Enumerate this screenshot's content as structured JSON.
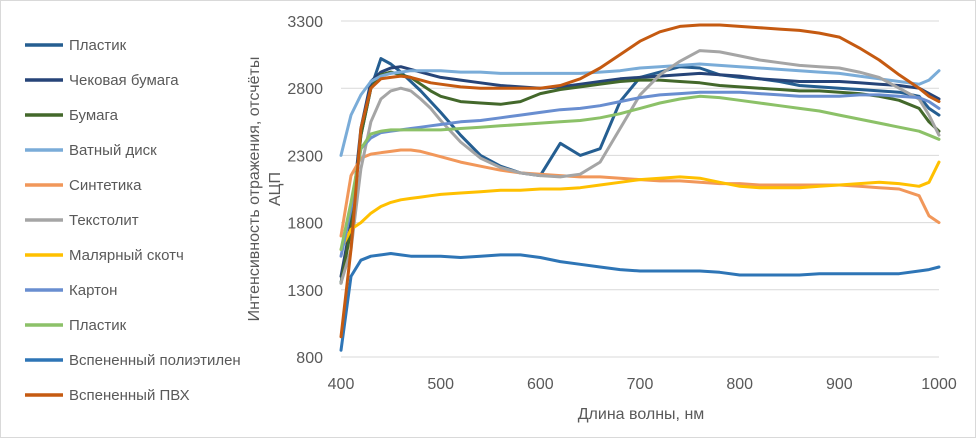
{
  "chart_data": {
    "type": "line",
    "title": "",
    "xlabel": "Длина волны, нм",
    "ylabel": "Интенсивность отражения, отсчёты АЦП",
    "xlim": [
      400,
      1000
    ],
    "ylim": [
      800,
      3300
    ],
    "xticks": [
      "400",
      "500",
      "600",
      "700",
      "800",
      "900",
      "1000"
    ],
    "yticks": [
      "800",
      "1300",
      "1800",
      "2300",
      "2800",
      "3300"
    ],
    "grid": "horizontal",
    "legend_position": "left",
    "x": [
      400,
      410,
      420,
      430,
      440,
      450,
      460,
      470,
      480,
      490,
      500,
      520,
      540,
      560,
      580,
      600,
      620,
      640,
      660,
      680,
      700,
      720,
      740,
      760,
      780,
      800,
      820,
      840,
      860,
      880,
      900,
      920,
      940,
      960,
      980,
      990,
      1000
    ],
    "series": [
      {
        "name": "Пластик",
        "color": "#255e91",
        "values": [
          1350,
          1800,
          2450,
          2800,
          3020,
          2980,
          2920,
          2850,
          2780,
          2700,
          2620,
          2450,
          2300,
          2220,
          2170,
          2150,
          2390,
          2300,
          2350,
          2700,
          2880,
          2920,
          2960,
          2950,
          2900,
          2880,
          2870,
          2850,
          2820,
          2810,
          2800,
          2790,
          2780,
          2770,
          2740,
          2650,
          2600
        ]
      },
      {
        "name": "Чековая бумага",
        "color": "#264478",
        "values": [
          1400,
          1800,
          2500,
          2850,
          2920,
          2950,
          2960,
          2940,
          2920,
          2900,
          2880,
          2860,
          2840,
          2820,
          2810,
          2800,
          2810,
          2830,
          2850,
          2870,
          2880,
          2890,
          2900,
          2910,
          2900,
          2890,
          2870,
          2860,
          2850,
          2850,
          2850,
          2840,
          2830,
          2820,
          2800,
          2760,
          2720
        ]
      },
      {
        "name": "Бумага",
        "color": "#43682b",
        "values": [
          1350,
          1750,
          2450,
          2800,
          2900,
          2920,
          2900,
          2880,
          2830,
          2780,
          2740,
          2700,
          2690,
          2680,
          2700,
          2760,
          2790,
          2810,
          2830,
          2850,
          2860,
          2860,
          2850,
          2840,
          2820,
          2810,
          2800,
          2790,
          2780,
          2780,
          2770,
          2760,
          2740,
          2710,
          2650,
          2550,
          2480
        ]
      },
      {
        "name": "Ватный диск",
        "color": "#7aacd8",
        "values": [
          2300,
          2600,
          2750,
          2850,
          2890,
          2910,
          2920,
          2930,
          2930,
          2930,
          2930,
          2920,
          2920,
          2910,
          2910,
          2910,
          2910,
          2910,
          2920,
          2930,
          2950,
          2960,
          2970,
          2980,
          2970,
          2960,
          2950,
          2940,
          2930,
          2920,
          2910,
          2890,
          2870,
          2850,
          2830,
          2860,
          2930
        ]
      },
      {
        "name": "Синтетика",
        "color": "#f1975a",
        "values": [
          1700,
          2150,
          2280,
          2310,
          2320,
          2330,
          2340,
          2340,
          2330,
          2310,
          2290,
          2250,
          2220,
          2190,
          2170,
          2160,
          2150,
          2140,
          2140,
          2130,
          2120,
          2110,
          2110,
          2100,
          2090,
          2090,
          2080,
          2080,
          2080,
          2080,
          2080,
          2070,
          2060,
          2050,
          2000,
          1850,
          1800
        ]
      },
      {
        "name": "Текстолит",
        "color": "#a5a5a5",
        "values": [
          1350,
          1600,
          2200,
          2550,
          2720,
          2780,
          2800,
          2780,
          2720,
          2650,
          2560,
          2400,
          2280,
          2210,
          2170,
          2150,
          2140,
          2160,
          2250,
          2500,
          2750,
          2900,
          3000,
          3080,
          3070,
          3040,
          3010,
          2990,
          2970,
          2960,
          2950,
          2920,
          2880,
          2800,
          2720,
          2600,
          2450
        ]
      },
      {
        "name": "Малярный скотч",
        "color": "#ffc000",
        "values": [
          1600,
          1750,
          1800,
          1870,
          1920,
          1950,
          1970,
          1980,
          1990,
          2000,
          2010,
          2020,
          2030,
          2040,
          2040,
          2050,
          2050,
          2060,
          2080,
          2100,
          2120,
          2130,
          2140,
          2130,
          2100,
          2070,
          2060,
          2060,
          2060,
          2070,
          2080,
          2090,
          2100,
          2090,
          2070,
          2100,
          2250
        ]
      },
      {
        "name": "Картон",
        "color": "#698ed0",
        "values": [
          1550,
          1900,
          2350,
          2430,
          2470,
          2480,
          2490,
          2500,
          2510,
          2520,
          2530,
          2550,
          2560,
          2580,
          2600,
          2620,
          2640,
          2650,
          2670,
          2700,
          2730,
          2750,
          2760,
          2770,
          2770,
          2770,
          2760,
          2750,
          2740,
          2740,
          2740,
          2750,
          2750,
          2740,
          2730,
          2700,
          2650
        ]
      },
      {
        "name": "Пластик",
        "color": "#8cc168",
        "values": [
          1600,
          1950,
          2350,
          2460,
          2480,
          2490,
          2490,
          2490,
          2490,
          2490,
          2490,
          2500,
          2510,
          2520,
          2530,
          2540,
          2550,
          2560,
          2580,
          2610,
          2650,
          2690,
          2720,
          2740,
          2730,
          2710,
          2690,
          2670,
          2650,
          2630,
          2600,
          2570,
          2540,
          2510,
          2480,
          2450,
          2420
        ]
      },
      {
        "name": "Вспененный полиэтилен",
        "color": "#2e75b6",
        "values": [
          850,
          1400,
          1520,
          1550,
          1560,
          1570,
          1560,
          1550,
          1550,
          1550,
          1550,
          1540,
          1550,
          1560,
          1560,
          1540,
          1510,
          1490,
          1470,
          1450,
          1440,
          1440,
          1440,
          1440,
          1430,
          1410,
          1410,
          1410,
          1410,
          1420,
          1420,
          1420,
          1420,
          1420,
          1440,
          1450,
          1470
        ]
      },
      {
        "name": "Вспененный ПВХ",
        "color": "#c55a11",
        "values": [
          950,
          1600,
          2500,
          2800,
          2870,
          2880,
          2890,
          2880,
          2860,
          2840,
          2830,
          2810,
          2800,
          2800,
          2800,
          2800,
          2820,
          2870,
          2950,
          3050,
          3150,
          3220,
          3260,
          3270,
          3270,
          3260,
          3250,
          3240,
          3230,
          3210,
          3180,
          3100,
          3010,
          2900,
          2800,
          2740,
          2700
        ]
      }
    ]
  }
}
